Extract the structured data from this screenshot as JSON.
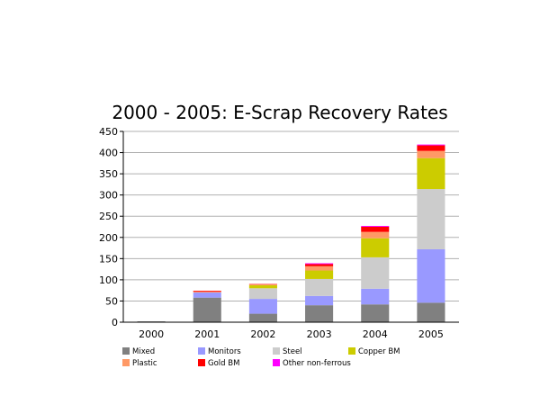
{
  "chart_data": {
    "type": "bar",
    "stacked": true,
    "title": "2000 - 2005: E-Scrap Recovery Rates",
    "xlabel": "",
    "ylabel": "",
    "categories": [
      "2000",
      "2001",
      "2002",
      "2003",
      "2004",
      "2005"
    ],
    "ylim": [
      0,
      450
    ],
    "yticks": [
      0,
      50,
      100,
      150,
      200,
      250,
      300,
      350,
      400,
      450
    ],
    "grid": true,
    "legend_position": "bottom",
    "series": [
      {
        "name": "Mixed",
        "color": "#808080",
        "values": [
          2,
          58,
          20,
          40,
          42,
          46
        ]
      },
      {
        "name": "Monitors",
        "color": "#9999ff",
        "values": [
          0,
          12,
          35,
          22,
          37,
          126
        ]
      },
      {
        "name": "Steel",
        "color": "#cccccc",
        "values": [
          0,
          0,
          25,
          40,
          74,
          142
        ]
      },
      {
        "name": "Copper BM",
        "color": "#cccc00",
        "values": [
          0,
          0,
          7,
          20,
          45,
          73
        ]
      },
      {
        "name": "Plastic",
        "color": "#ff9966",
        "values": [
          0,
          2,
          2,
          10,
          15,
          17
        ]
      },
      {
        "name": "Gold BM",
        "color": "#ff0000",
        "values": [
          0,
          2,
          1,
          5,
          12,
          13
        ]
      },
      {
        "name": "Other non-ferrous",
        "color": "#ff00ff",
        "values": [
          0,
          0,
          0,
          2,
          2,
          2
        ]
      }
    ]
  }
}
